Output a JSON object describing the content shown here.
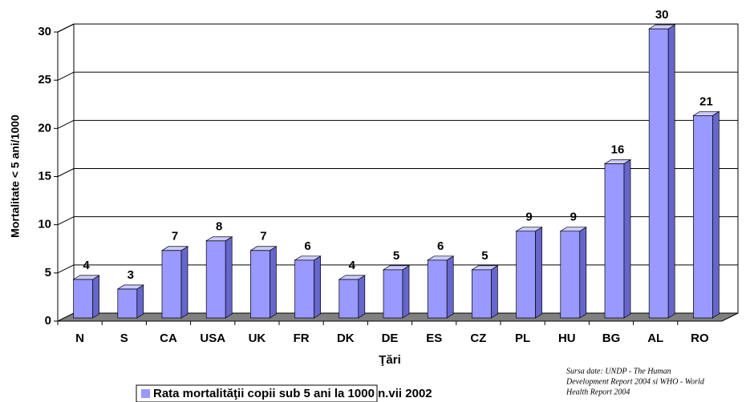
{
  "chart_data": {
    "type": "bar3d",
    "categories": [
      "N",
      "S",
      "CA",
      "USA",
      "UK",
      "FR",
      "DK",
      "DE",
      "ES",
      "CZ",
      "PL",
      "HU",
      "BG",
      "AL",
      "RO"
    ],
    "series": [
      {
        "name": "Rata mortalităţii copii sub 5 ani la 1000 n.vii 2002",
        "color": "#9999ff",
        "values": [
          4,
          3,
          7,
          8,
          7,
          6,
          4,
          5,
          6,
          5,
          9,
          9,
          16,
          30,
          21
        ]
      }
    ],
    "ylim": [
      0,
      30
    ],
    "yticks": [
      0,
      5,
      10,
      15,
      20,
      25,
      30
    ],
    "grid": true,
    "xlabel": "Ţări",
    "ylabel": "Mortalitate < 5 ani/1000",
    "source": [
      "Sursa date: UNDP - The Human",
      "Development Report 2004 si WHO - World",
      "Health Report 2004"
    ]
  }
}
